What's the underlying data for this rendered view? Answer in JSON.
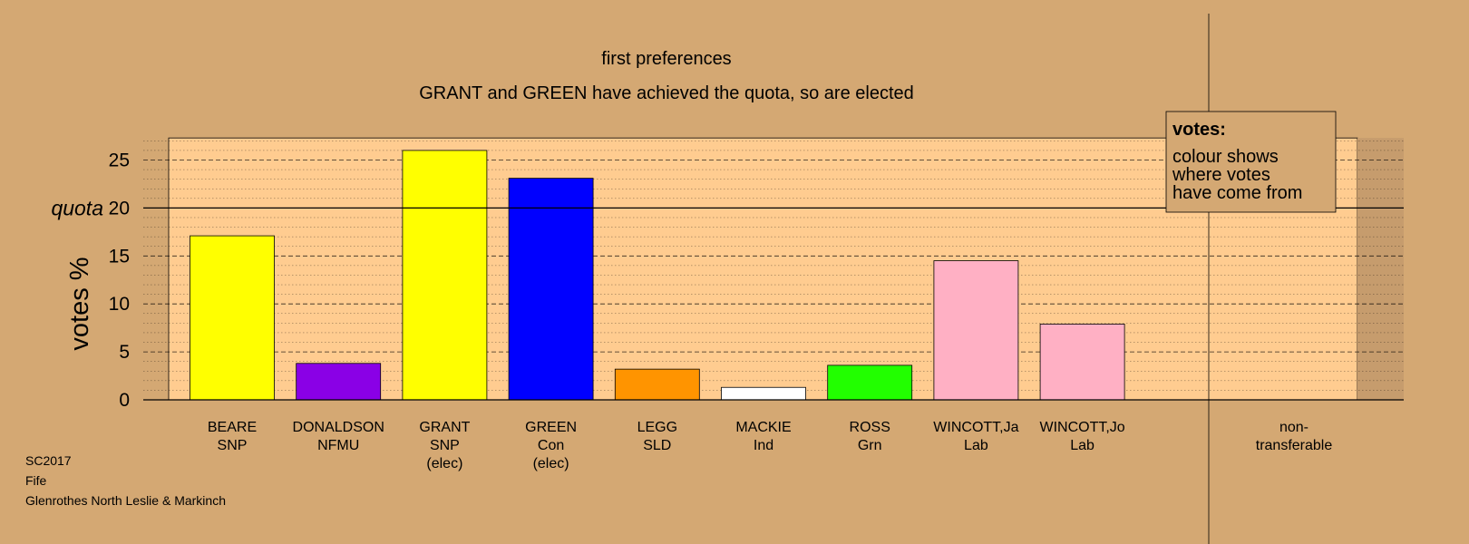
{
  "chart_data": {
    "type": "bar",
    "title": "first preferences",
    "subtitle": "GRANT and GREEN have achieved the quota, so are elected",
    "ylabel": "votes %",
    "ylim": [
      0,
      27.3
    ],
    "yticks": [
      0,
      5,
      10,
      15,
      20,
      25
    ],
    "quota": {
      "value": 20,
      "label": "quota"
    },
    "grid": true,
    "categories": [
      {
        "lines": [
          "BEARE",
          "SNP"
        ],
        "value": 17.1,
        "color": "#ffff00"
      },
      {
        "lines": [
          "DONALDSON",
          "NFMU"
        ],
        "value": 3.8,
        "color": "#8a00e6"
      },
      {
        "lines": [
          "GRANT",
          "SNP",
          "(elec)"
        ],
        "value": 26.0,
        "color": "#ffff00"
      },
      {
        "lines": [
          "GREEN",
          "Con",
          "(elec)"
        ],
        "value": 23.1,
        "color": "#0000ff"
      },
      {
        "lines": [
          "LEGG",
          "SLD"
        ],
        "value": 3.2,
        "color": "#ff9400"
      },
      {
        "lines": [
          "MACKIE",
          "Ind"
        ],
        "value": 1.3,
        "color": "#ffffff"
      },
      {
        "lines": [
          "ROSS",
          "Grn"
        ],
        "value": 3.6,
        "color": "#22ff00"
      },
      {
        "lines": [
          "WINCOTT,Ja",
          "Lab"
        ],
        "value": 14.5,
        "color": "#ffb0c4"
      },
      {
        "lines": [
          "WINCOTT,Jo",
          "Lab"
        ],
        "value": 7.9,
        "color": "#ffb0c4"
      }
    ],
    "nontransferable": {
      "lines": [
        "non-",
        "transferable"
      ],
      "value": 0
    },
    "legend": {
      "position": "top-right",
      "title": "votes:",
      "lines": [
        "colour shows",
        "where votes",
        "have come from"
      ]
    },
    "footer": [
      "SC2017",
      "Fife",
      "Glenrothes North Leslie & Markinch"
    ]
  },
  "colors": {
    "background": "#d4a873",
    "plot_area": "#ffcc90",
    "plot_edge": "#c69c6d"
  }
}
